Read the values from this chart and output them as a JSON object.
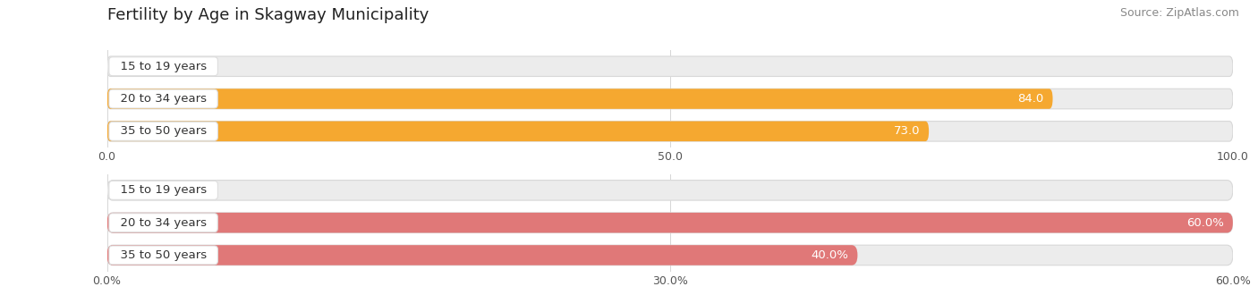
{
  "title": "Fertility by Age in Skagway Municipality",
  "source": "Source: ZipAtlas.com",
  "chart1": {
    "categories": [
      "15 to 19 years",
      "20 to 34 years",
      "35 to 50 years"
    ],
    "values": [
      0.0,
      84.0,
      73.0
    ],
    "xlim": [
      0,
      100
    ],
    "xticks": [
      0.0,
      50.0,
      100.0
    ],
    "xtick_labels": [
      "0.0",
      "50.0",
      "100.0"
    ],
    "bar_color": "#F5A830",
    "track_color": "#ececec",
    "track_edge_color": "#d8d8d8"
  },
  "chart2": {
    "categories": [
      "15 to 19 years",
      "20 to 34 years",
      "35 to 50 years"
    ],
    "values": [
      0.0,
      60.0,
      40.0
    ],
    "xlim": [
      0,
      60
    ],
    "xticks": [
      0.0,
      30.0,
      60.0
    ],
    "xtick_labels": [
      "0.0%",
      "30.0%",
      "60.0%"
    ],
    "bar_color": "#E07878",
    "track_color": "#ececec",
    "track_edge_color": "#d8d8d8"
  },
  "bg_color": "#ffffff",
  "title_fontsize": 13,
  "cat_fontsize": 9.5,
  "val_fontsize": 9.5,
  "tick_fontsize": 9,
  "source_fontsize": 9,
  "bar_height": 0.62,
  "cat_label_color": "#333333",
  "val_color_inside": "#ffffff",
  "val_color_outside": "#888888",
  "track_shadow_color": "#c8c8c8",
  "grid_color": "#cccccc"
}
